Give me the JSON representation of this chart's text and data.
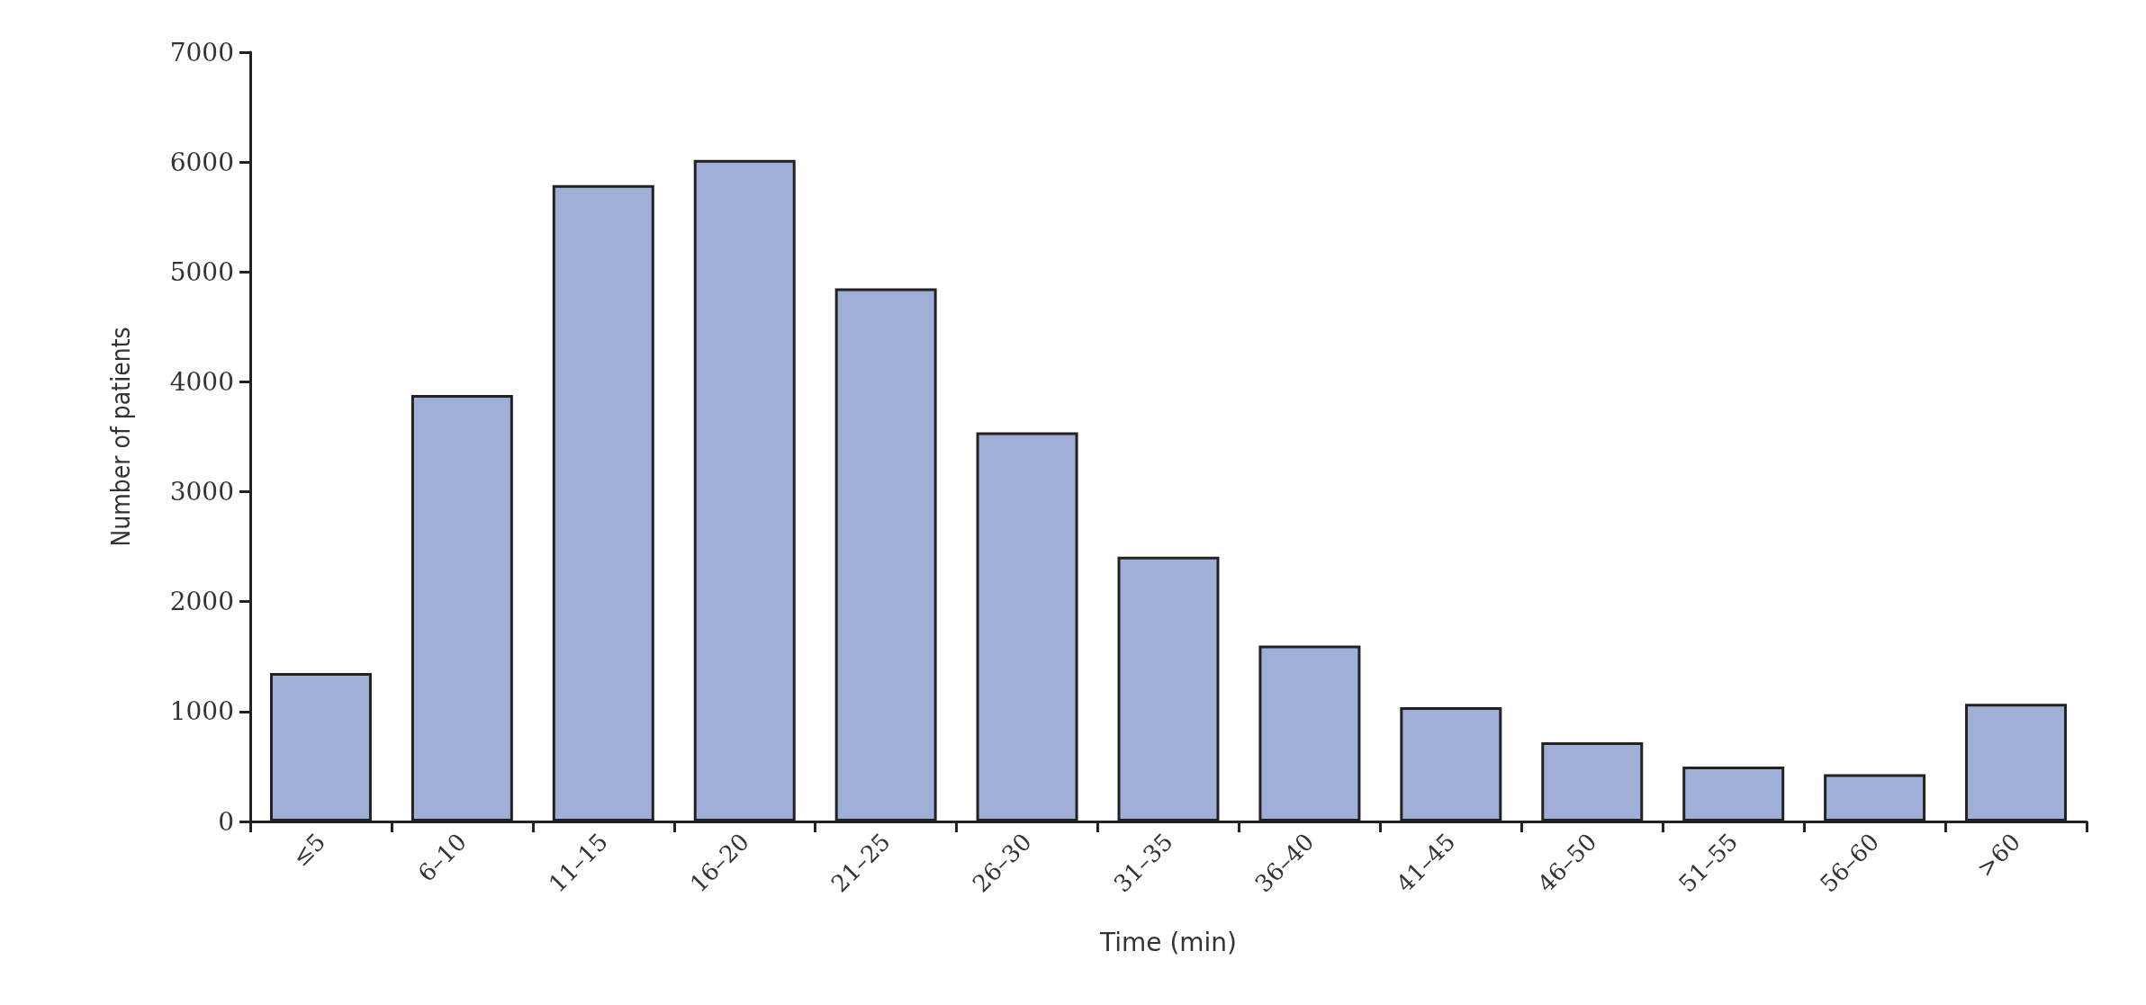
{
  "chart_data": {
    "type": "bar",
    "xlabel": "Time (min)",
    "ylabel": "Number of patients",
    "categories": [
      "≤5",
      "6–10",
      "11–15",
      "16–20",
      "21–25",
      "26–30",
      "31–35",
      "36–40",
      "41–45",
      "46–50",
      "51–55",
      "56–60",
      ">60"
    ],
    "values": [
      1350,
      3880,
      5790,
      6020,
      4850,
      3540,
      2410,
      1600,
      1040,
      720,
      500,
      430,
      1070
    ],
    "color": "#a0afd8",
    "ylim": [
      0,
      7000
    ],
    "yticks": [
      0,
      1000,
      2000,
      3000,
      4000,
      5000,
      6000,
      7000
    ],
    "grid": false
  }
}
